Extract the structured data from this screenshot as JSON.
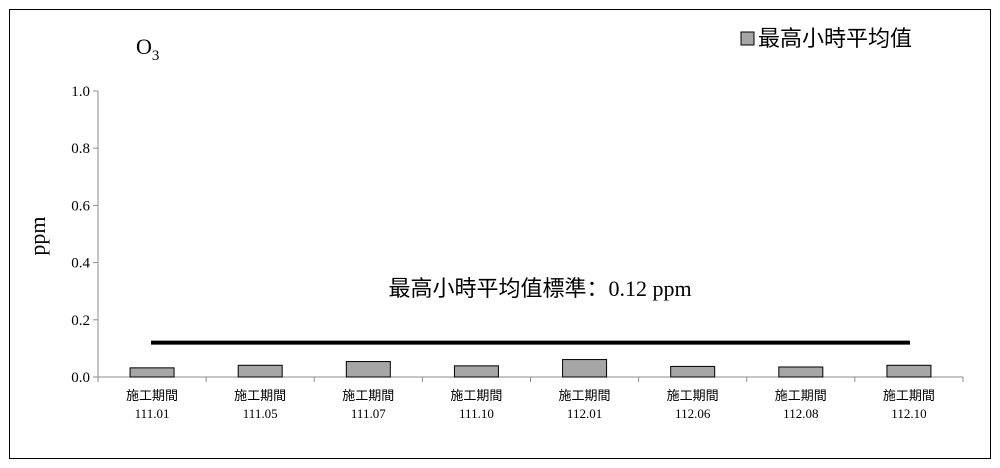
{
  "chart_data": {
    "type": "bar",
    "title": "O",
    "title_subscript": "3",
    "ylabel": "ppm",
    "xlabel": "",
    "ylim": [
      0,
      1.0
    ],
    "yticks": [
      "0.0",
      "0.2",
      "0.4",
      "0.6",
      "0.8",
      "1.0"
    ],
    "ytick_values": [
      0,
      0.2,
      0.4,
      0.6,
      0.8,
      1.0
    ],
    "categories": [
      [
        "施工期間",
        "111.01"
      ],
      [
        "施工期間",
        "111.05"
      ],
      [
        "施工期間",
        "111.07"
      ],
      [
        "施工期間",
        "111.10"
      ],
      [
        "施工期間",
        "112.01"
      ],
      [
        "施工期間",
        "112.06"
      ],
      [
        "施工期間",
        "112.08"
      ],
      [
        "施工期間",
        "112.10"
      ]
    ],
    "series": [
      {
        "name": "最高小時平均值",
        "color": "#a6a6a6",
        "values": [
          0.032,
          0.041,
          0.054,
          0.039,
          0.061,
          0.037,
          0.035,
          0.041
        ]
      }
    ],
    "reference_line": {
      "value": 0.12,
      "label": "最高小時平均值標準：0.12 ppm",
      "color": "#000000"
    },
    "legend_position": "top-right",
    "grid": false
  }
}
